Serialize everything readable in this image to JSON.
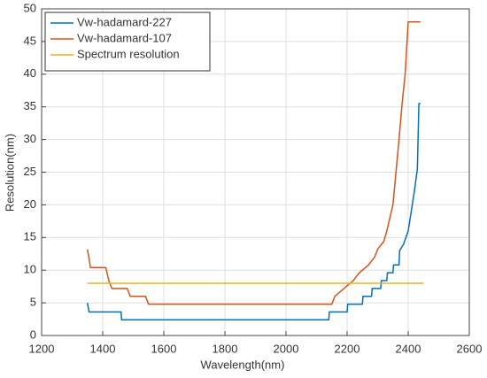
{
  "chart_data": {
    "type": "line",
    "xlabel": "Wavelength(nm)",
    "ylabel": "Resolution(nm)",
    "xlim": [
      1200,
      2600
    ],
    "xticks": [
      1200,
      1400,
      1600,
      1800,
      2000,
      2200,
      2400,
      2600
    ],
    "ylim": [
      0,
      50
    ],
    "yticks": [
      0,
      5,
      10,
      15,
      20,
      25,
      30,
      35,
      40,
      45,
      50
    ],
    "grid": true,
    "legend": "northwest",
    "series": [
      {
        "name": "Vw-hadamard-227",
        "color": "#0072bd",
        "x": [
          1350,
          1355,
          1460,
          1462,
          2140,
          2142,
          2200,
          2202,
          2250,
          2252,
          2280,
          2282,
          2310,
          2312,
          2330,
          2332,
          2350,
          2352,
          2370,
          2372,
          2385,
          2400,
          2410,
          2420,
          2430,
          2435,
          2440
        ],
        "values": [
          5,
          3.6,
          3.6,
          2.4,
          2.4,
          3.6,
          3.6,
          4.8,
          4.8,
          6,
          6,
          7.2,
          7.2,
          8.4,
          8.4,
          9.6,
          9.6,
          10.8,
          10.8,
          13,
          14,
          16,
          19,
          22,
          25.5,
          35.5,
          35.5
        ]
      },
      {
        "name": "Vw-hadamard-107",
        "color": "#d95319",
        "x": [
          1350,
          1360,
          1410,
          1420,
          1430,
          1480,
          1490,
          1540,
          1550,
          2150,
          2160,
          2190,
          2220,
          2240,
          2270,
          2290,
          2300,
          2320,
          2330,
          2340,
          2350,
          2360,
          2370,
          2380,
          2390,
          2400,
          2440
        ],
        "values": [
          13.2,
          10.4,
          10.4,
          8.4,
          7.2,
          7.2,
          6,
          6,
          4.8,
          4.8,
          6,
          7.2,
          8.4,
          9.6,
          10.8,
          12,
          13.2,
          14.4,
          16,
          18,
          20,
          25,
          30,
          35.5,
          40,
          48,
          48
        ]
      },
      {
        "name": "Spectrum resolution",
        "color": "#edb120",
        "x": [
          1350,
          2450
        ],
        "values": [
          8,
          8
        ]
      }
    ]
  }
}
